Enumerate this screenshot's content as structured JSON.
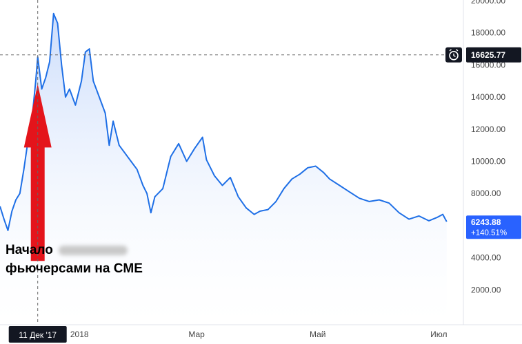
{
  "chart_data": {
    "type": "area",
    "x": [
      "2017-11-22",
      "2017-11-24",
      "2017-11-26",
      "2017-11-28",
      "2017-11-30",
      "2017-12-02",
      "2017-12-04",
      "2017-12-06",
      "2017-12-07",
      "2017-12-08",
      "2017-12-10",
      "2017-12-11",
      "2017-12-13",
      "2017-12-15",
      "2017-12-17",
      "2017-12-19",
      "2017-12-21",
      "2017-12-23",
      "2017-12-25",
      "2017-12-27",
      "2017-12-30",
      "2018-01-02",
      "2018-01-04",
      "2018-01-06",
      "2018-01-08",
      "2018-01-11",
      "2018-01-14",
      "2018-01-16",
      "2018-01-18",
      "2018-01-21",
      "2018-01-24",
      "2018-01-27",
      "2018-01-30",
      "2018-02-02",
      "2018-02-04",
      "2018-02-06",
      "2018-02-08",
      "2018-02-12",
      "2018-02-16",
      "2018-02-20",
      "2018-02-24",
      "2018-02-28",
      "2018-03-04",
      "2018-03-06",
      "2018-03-10",
      "2018-03-14",
      "2018-03-18",
      "2018-03-22",
      "2018-03-26",
      "2018-03-30",
      "2018-04-02",
      "2018-04-06",
      "2018-04-10",
      "2018-04-14",
      "2018-04-18",
      "2018-04-22",
      "2018-04-26",
      "2018-04-30",
      "2018-05-04",
      "2018-05-07",
      "2018-05-12",
      "2018-05-17",
      "2018-05-22",
      "2018-05-27",
      "2018-06-01",
      "2018-06-06",
      "2018-06-11",
      "2018-06-16",
      "2018-06-21",
      "2018-06-26",
      "2018-06-30",
      "2018-07-03",
      "2018-07-05"
    ],
    "values": [
      7200,
      6400,
      5700,
      6900,
      7600,
      8000,
      9500,
      11200,
      12000,
      12500,
      15000,
      16500,
      14500,
      15200,
      16200,
      19200,
      18600,
      16000,
      14000,
      14500,
      13500,
      15000,
      16800,
      17000,
      15000,
      14000,
      13000,
      11000,
      12500,
      11000,
      10500,
      10000,
      9500,
      8500,
      8000,
      6800,
      7800,
      8300,
      10300,
      11100,
      10000,
      10800,
      11500,
      10100,
      9100,
      8500,
      9000,
      7800,
      7100,
      6700,
      6900,
      7000,
      7500,
      8300,
      8900,
      9200,
      9600,
      9700,
      9300,
      8900,
      8500,
      8100,
      7700,
      7500,
      7600,
      7400,
      6800,
      6400,
      6600,
      6300,
      6500,
      6700,
      6243.88
    ],
    "xlabel": "",
    "ylabel": "",
    "ylim": [
      0,
      21000
    ],
    "xlim": [
      "2017-11-22",
      "2018-07-12"
    ],
    "y_ticks": [
      "2000.00",
      "4000.00",
      "6000.00",
      "8000.00",
      "10000.00",
      "12000.00",
      "14000.00",
      "16000.00",
      "18000.00",
      "20000.00"
    ],
    "x_ticks": [
      {
        "label": "2018",
        "date": "2018-01-01"
      },
      {
        "label": "Мар",
        "date": "2018-03-01"
      },
      {
        "label": "Май",
        "date": "2018-05-01"
      },
      {
        "label": "Июл",
        "date": "2018-07-01"
      }
    ],
    "crosshair": {
      "date_label": "11 Дек '17",
      "date": "2017-12-11",
      "price_label": "16625.77",
      "price": 16625.77
    },
    "last_price": {
      "value_label": "6243.88",
      "change_label": "+140.51%",
      "value": 6243.88
    },
    "arrow": {
      "date": "2017-12-11",
      "from": 3800,
      "to": 14800
    },
    "grid": false,
    "legend": "none"
  },
  "annotation": {
    "line1": "Начало",
    "line2": "фьючерсами на CME"
  },
  "colors": {
    "line": "#1e6fe6",
    "fill_top": "#c6d9fb",
    "fill_bottom": "#ffffff",
    "arrow": "#e4141b",
    "crosshair": "#666666",
    "label_bg": "#131722",
    "last_price_bg": "#2962ff"
  },
  "icons": {
    "crosshair_badge": "alarm-clock-icon"
  }
}
